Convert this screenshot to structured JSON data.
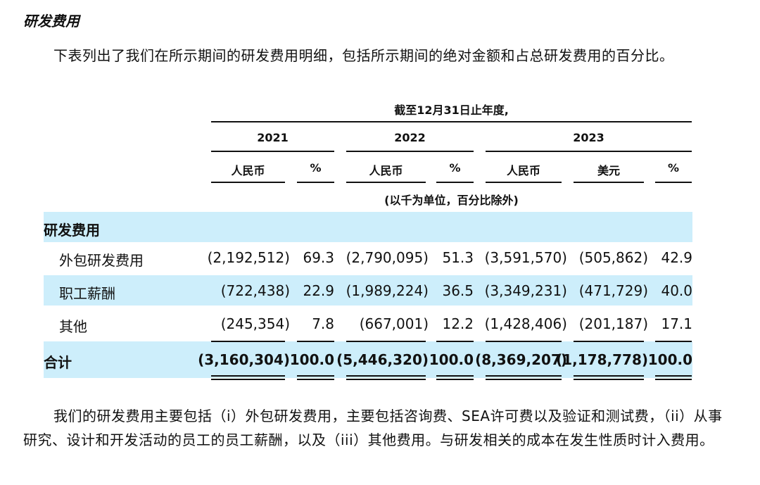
{
  "section_title": "研发费用",
  "intro": "下表列出了我们在所示期间的研发费用明细，包括所示期间的绝对金额和占总研发费用的百分比。",
  "table": {
    "period_header": "截至12月31日止年度,",
    "years": [
      "2021",
      "2022",
      "2023"
    ],
    "subheaders": [
      "人民币",
      "%",
      "人民币",
      "%",
      "人民币",
      "美元",
      "%"
    ],
    "unit_note": "(以千为单位，百分比除外)",
    "group_label": "研发费用",
    "rows": [
      {
        "label": "外包研发费用",
        "values": [
          "(2,192,512)",
          "69.3",
          "(2,790,095)",
          "51.3",
          "(3,591,570)",
          "(505,862)",
          "42.9"
        ]
      },
      {
        "label": "职工薪酬",
        "values": [
          "(722,438)",
          "22.9",
          "(1,989,224)",
          "36.5",
          "(3,349,231)",
          "(471,729)",
          "40.0"
        ]
      },
      {
        "label": "其他",
        "values": [
          "(245,354)",
          "7.8",
          "(667,001)",
          "12.2",
          "(1,428,406)",
          "(201,187)",
          "17.1"
        ]
      }
    ],
    "total": {
      "label": "合计",
      "values": [
        "(3,160,304)",
        "100.0",
        "(5,446,320)",
        "100.0",
        "(8,369,207)",
        "(1,178,778)",
        "100.0"
      ]
    }
  },
  "note": "我们的研发费用主要包括（i）外包研发费用，主要包括咨询费、SEA许可费以及验证和测试费，（ii）从事研究、设计和开发活动的员工的员工薪酬，以及（iii）其他费用。与研发相关的成本在发生性质时计入费用。",
  "colors": {
    "band": "#cdeefb",
    "text": "#111111"
  }
}
